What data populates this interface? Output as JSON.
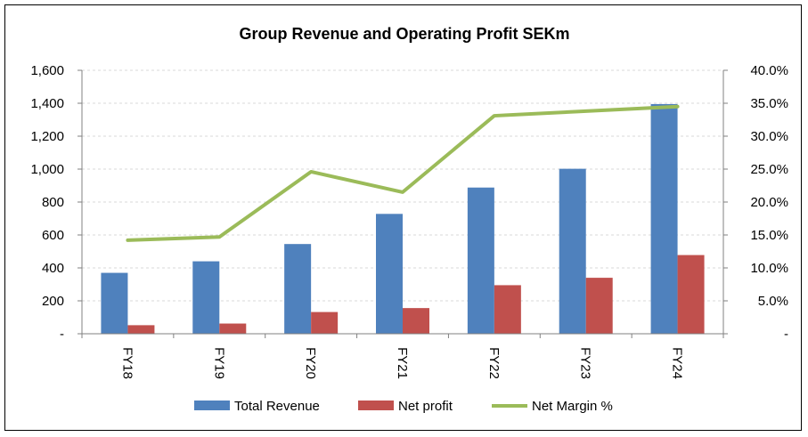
{
  "chart_data": {
    "type": "bar",
    "title": "Group Revenue and Operating Profit SEKm",
    "categories": [
      "FY18",
      "FY19",
      "FY20",
      "FY21",
      "FY22",
      "FY23",
      "FY24"
    ],
    "series": [
      {
        "name": "Total Revenue",
        "type": "bar",
        "axis": "left",
        "color": "#4f81bd",
        "values": [
          370,
          440,
          545,
          728,
          888,
          1002,
          1395
        ]
      },
      {
        "name": "Net profit",
        "type": "bar",
        "axis": "left",
        "color": "#c0504d",
        "values": [
          52,
          62,
          132,
          156,
          295,
          340,
          478
        ]
      },
      {
        "name": "Net Margin %",
        "type": "line",
        "axis": "right",
        "color": "#9bbb59",
        "values": [
          14.2,
          14.7,
          24.6,
          21.5,
          33.1,
          33.8,
          34.5
        ]
      }
    ],
    "y_left": {
      "min": 0,
      "max": 1600,
      "step": 200,
      "tick_labels": [
        "-",
        "200",
        "400",
        "600",
        "800",
        "1,000",
        "1,200",
        "1,400",
        "1,600"
      ]
    },
    "y_right": {
      "min": 0,
      "max": 40,
      "step": 5,
      "tick_labels": [
        "-",
        "5.0%",
        "10.0%",
        "15.0%",
        "20.0%",
        "25.0%",
        "30.0%",
        "35.0%",
        "40.0%"
      ]
    },
    "grid": true,
    "legend": "bottom"
  }
}
